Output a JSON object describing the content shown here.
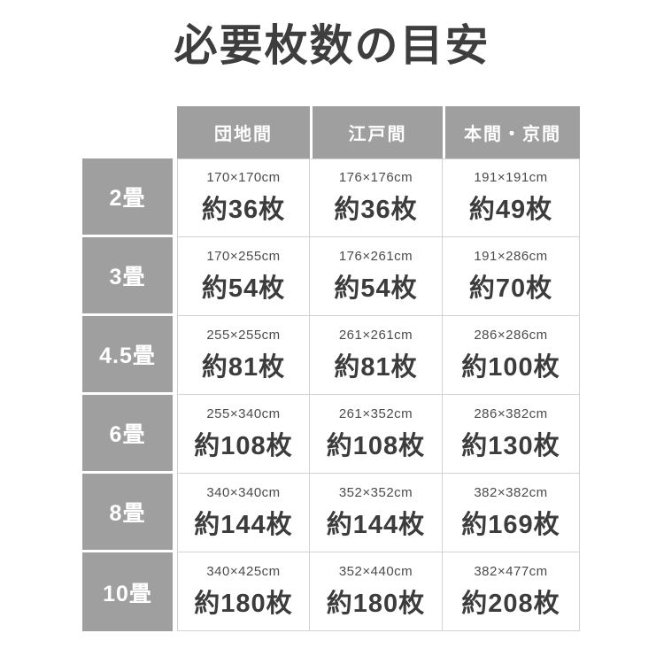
{
  "chart_data": {
    "type": "table",
    "title": "必要枚数の目安",
    "columns": [
      "団地間",
      "江戸間",
      "本間・京間"
    ],
    "rows": [
      {
        "label": "2畳",
        "cells": [
          {
            "size": "170×170cm",
            "count": "約36枚"
          },
          {
            "size": "176×176cm",
            "count": "約36枚"
          },
          {
            "size": "191×191cm",
            "count": "約49枚"
          }
        ]
      },
      {
        "label": "3畳",
        "cells": [
          {
            "size": "170×255cm",
            "count": "約54枚"
          },
          {
            "size": "176×261cm",
            "count": "約54枚"
          },
          {
            "size": "191×286cm",
            "count": "約70枚"
          }
        ]
      },
      {
        "label": "4.5畳",
        "cells": [
          {
            "size": "255×255cm",
            "count": "約81枚"
          },
          {
            "size": "261×261cm",
            "count": "約81枚"
          },
          {
            "size": "286×286cm",
            "count": "約100枚"
          }
        ]
      },
      {
        "label": "6畳",
        "cells": [
          {
            "size": "255×340cm",
            "count": "約108枚"
          },
          {
            "size": "261×352cm",
            "count": "約108枚"
          },
          {
            "size": "286×382cm",
            "count": "約130枚"
          }
        ]
      },
      {
        "label": "8畳",
        "cells": [
          {
            "size": "340×340cm",
            "count": "約144枚"
          },
          {
            "size": "352×352cm",
            "count": "約144枚"
          },
          {
            "size": "382×382cm",
            "count": "約169枚"
          }
        ]
      },
      {
        "label": "10畳",
        "cells": [
          {
            "size": "340×425cm",
            "count": "約180枚"
          },
          {
            "size": "352×440cm",
            "count": "約180枚"
          },
          {
            "size": "382×477cm",
            "count": "約208枚"
          }
        ]
      }
    ],
    "layout": {
      "legend": "none",
      "grid": "table-borders"
    }
  },
  "colors": {
    "header_bg": "#9f9f9f",
    "header_text": "#ffffff",
    "title_text": "#3e3e3e",
    "count_text": "#3c3c3c",
    "size_text": "#4b4b4b",
    "cell_border": "#d2d2d2",
    "page_bg": "#ffffff"
  }
}
